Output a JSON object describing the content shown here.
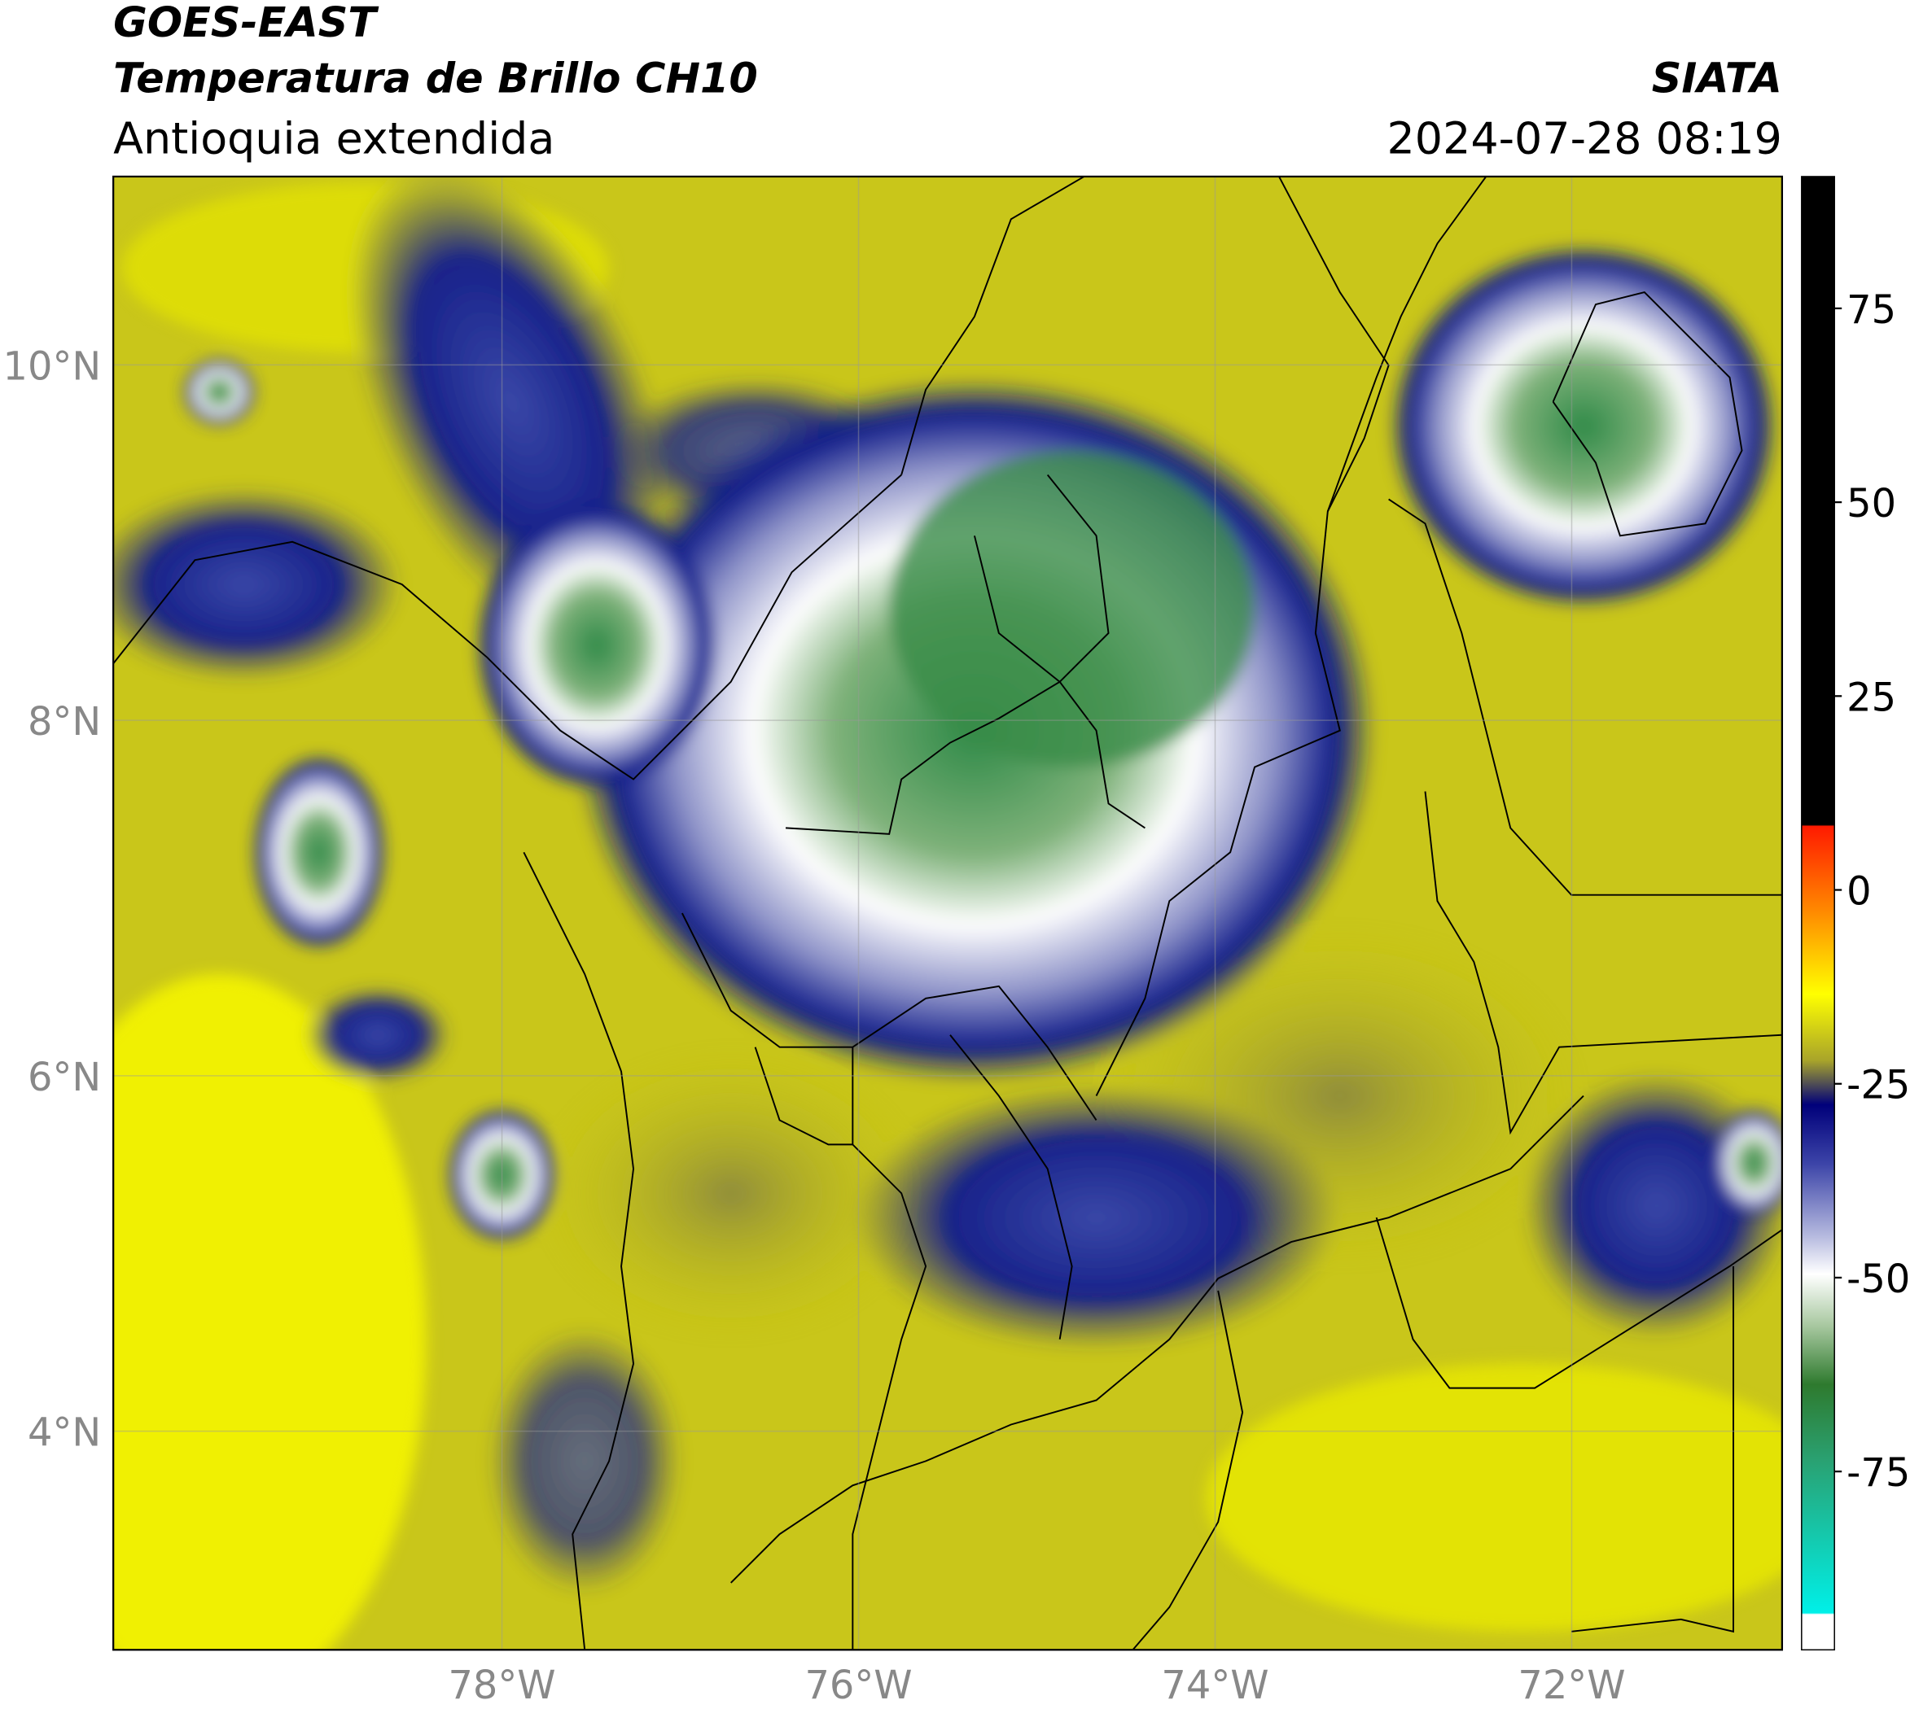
{
  "header": {
    "title": "GOES-EAST",
    "subtitle": "Temperatura de Brillo CH10",
    "region": "Antioquia extendida",
    "source": "SIATA",
    "datetime": "2024-07-28 08:19"
  },
  "map": {
    "lonlim": [
      -80.18,
      -70.82
    ],
    "latlim": [
      2.77,
      11.06
    ],
    "lat_ticks": [
      {
        "value": 10,
        "label": "10°N"
      },
      {
        "value": 8,
        "label": "8°N"
      },
      {
        "value": 6,
        "label": "6°N"
      },
      {
        "value": 4,
        "label": "4°N"
      }
    ],
    "lon_ticks": [
      {
        "value": -78,
        "label": "78°W"
      },
      {
        "value": -76,
        "label": "76°W"
      },
      {
        "value": -74,
        "label": "74°W"
      },
      {
        "value": -72,
        "label": "72°W"
      }
    ]
  },
  "colorbar": {
    "lim": [
      -98,
      92
    ],
    "ticks": [
      75,
      50,
      25,
      0,
      -25,
      -50,
      -75
    ]
  }
}
